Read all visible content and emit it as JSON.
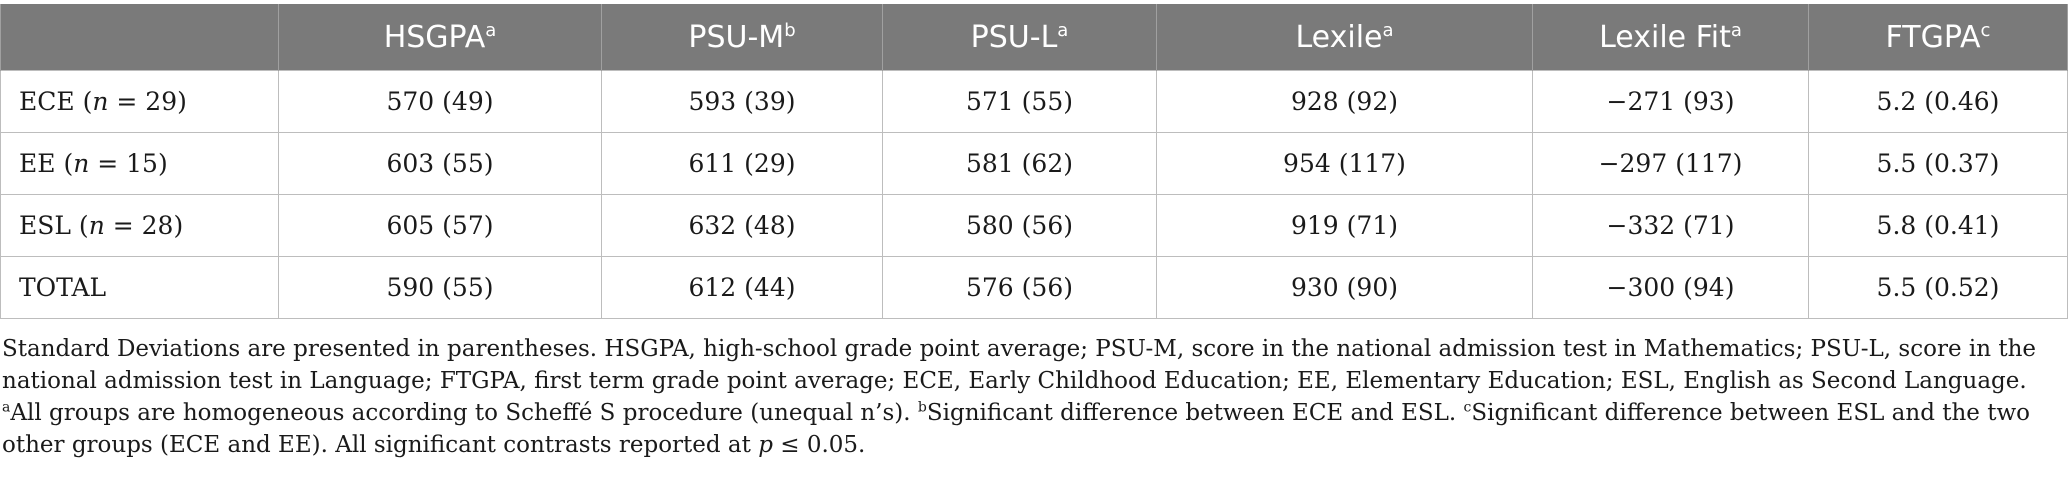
{
  "table": {
    "headers": [
      {
        "label": "",
        "sup": ""
      },
      {
        "label": "HSGPA",
        "sup": "a"
      },
      {
        "label": "PSU-M",
        "sup": "b"
      },
      {
        "label": "PSU-L",
        "sup": "a"
      },
      {
        "label": "Lexile",
        "sup": "a"
      },
      {
        "label": "Lexile Fit",
        "sup": "a"
      },
      {
        "label": "FTGPA",
        "sup": "c"
      }
    ],
    "rows": [
      {
        "group": "ECE",
        "n_text": "n",
        "n_value": " = 29)",
        "cells": [
          "570 (49)",
          "593 (39)",
          "571 (55)",
          "928 (92)",
          "−271 (93)",
          "5.2 (0.46)"
        ]
      },
      {
        "group": "EE",
        "n_text": "n",
        "n_value": " = 15)",
        "cells": [
          "603 (55)",
          "611 (29)",
          "581 (62)",
          "954 (117)",
          "−297 (117)",
          "5.5 (0.37)"
        ]
      },
      {
        "group": "ESL",
        "n_text": "n",
        "n_value": " = 28)",
        "cells": [
          "605 (57)",
          "632 (48)",
          "580 (56)",
          "919 (71)",
          "−332 (71)",
          "5.8 (0.41)"
        ]
      },
      {
        "group": "TOTAL",
        "n_text": "",
        "n_value": "",
        "cells": [
          "590 (55)",
          "612 (44)",
          "576 (56)",
          "930 (90)",
          "−300 (94)",
          "5.5 (0.52)"
        ]
      }
    ]
  },
  "footnote": {
    "main": "Standard Deviations are presented in parentheses. HSGPA, high-school grade point average; PSU-M, score in the national admission test in Mathematics; PSU-L, score in the national admission test in Language; FTGPA, first term grade point average; ECE, Early Childhood Education; EE, Elementary Education; ESL, English as Second Language.",
    "a_sup": "a",
    "a_text": "All groups are homogeneous according to Scheffé S procedure (unequal n’s).",
    "b_sup": "b",
    "b_text": "Significant difference between ECE and ESL.",
    "c_sup": "c",
    "c_text": "Significant difference between ESL and the two other groups (ECE and EE). All significant contrasts reported at",
    "p_symbol": "p",
    "p_value": " ≤ 0.05."
  }
}
